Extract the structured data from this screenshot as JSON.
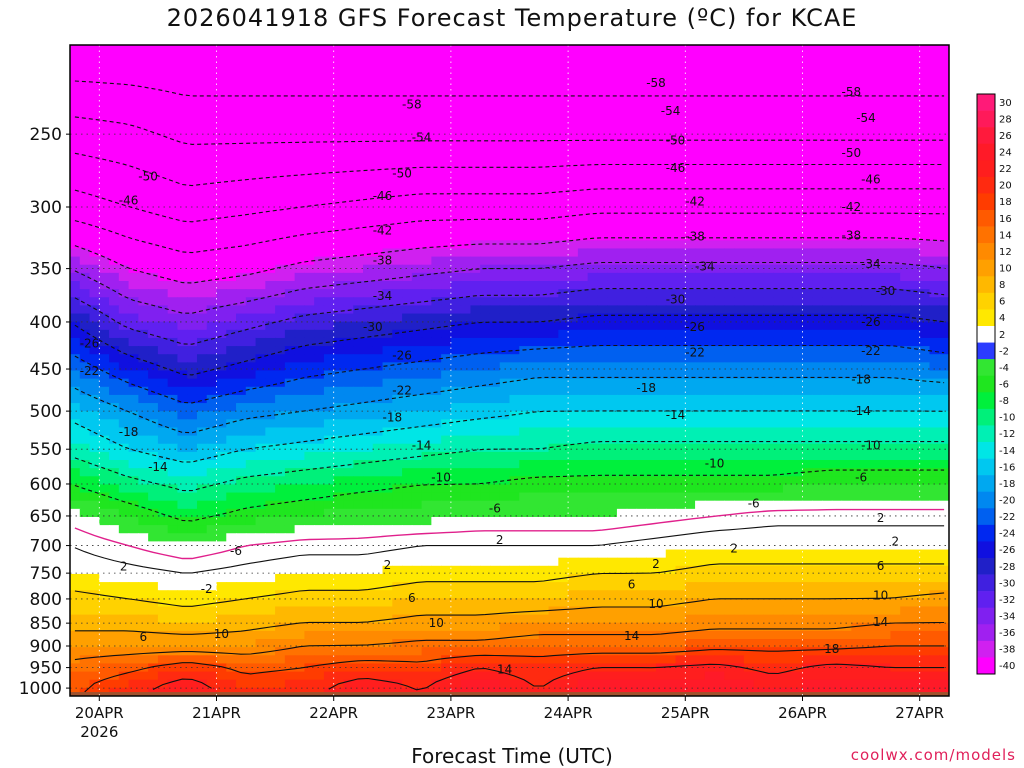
{
  "chart_data": {
    "type": "heatmap",
    "title": "2026041918 GFS Forecast Temperature (ºC) for KCAE",
    "xlabel": "Forecast Time (UTC)",
    "ylabel": "",
    "credit": "coolwx.com/models",
    "x_ticks": [
      "20APR",
      "21APR",
      "22APR",
      "23APR",
      "24APR",
      "25APR",
      "26APR",
      "27APR"
    ],
    "x_tick_hours": [
      6,
      30,
      54,
      78,
      102,
      126,
      150,
      174
    ],
    "x_year": "2026",
    "x_range_hours": [
      0,
      180
    ],
    "y_ticks": [
      250,
      300,
      350,
      400,
      450,
      500,
      550,
      600,
      650,
      700,
      750,
      800,
      850,
      900,
      950,
      1000
    ],
    "y_range_hpa": [
      200,
      1020
    ],
    "y_scale": "log-pressure",
    "colorbar_levels": [
      30,
      28,
      26,
      24,
      22,
      20,
      18,
      16,
      14,
      12,
      10,
      8,
      6,
      4,
      2,
      -2,
      -4,
      -6,
      -8,
      -10,
      -12,
      -14,
      -16,
      -18,
      -20,
      -22,
      -24,
      -26,
      -28,
      -30,
      -32,
      -34,
      -36,
      -38,
      -40
    ],
    "colorbar_colors": [
      "#ff1a78",
      "#ff1a5a",
      "#ff1a3c",
      "#ff1a28",
      "#ff1e1e",
      "#ff2a10",
      "#ff3c00",
      "#ff5a00",
      "#ff7200",
      "#ff8a00",
      "#ffa000",
      "#ffb800",
      "#ffd200",
      "#ffe800",
      "#ffffff",
      "#2b3cff",
      "#32e632",
      "#1fe61f",
      "#00f03c",
      "#00f07a",
      "#00f0b4",
      "#00e6e6",
      "#00c8f0",
      "#00a8f0",
      "#0088f0",
      "#0060f0",
      "#0028f0",
      "#1010e0",
      "#2020c8",
      "#4020e0",
      "#6020f0",
      "#8020f0",
      "#a020f0",
      "#d020f0",
      "#ff00ff"
    ],
    "surface_color": "#a0522d",
    "levels_hpa": [
      200,
      250,
      300,
      350,
      400,
      450,
      500,
      550,
      600,
      650,
      700,
      750,
      800,
      850,
      900,
      950,
      1000
    ],
    "hours": [
      0,
      12,
      24,
      36,
      48,
      60,
      72,
      84,
      96,
      108,
      120,
      132,
      144,
      156,
      168,
      180
    ],
    "temperature_c": [
      [
        -62,
        -62,
        -62,
        -62,
        -62,
        -62,
        -62,
        -62,
        -62,
        -62,
        -62,
        -62,
        -62,
        -62,
        -62,
        -62
      ],
      [
        -52,
        -53,
        -55,
        -55,
        -55,
        -55,
        -55,
        -55,
        -55,
        -55,
        -55,
        -55,
        -55,
        -55,
        -55,
        -55
      ],
      [
        -44,
        -46,
        -48,
        -47,
        -46,
        -45,
        -44,
        -44,
        -44,
        -43,
        -43,
        -43,
        -43,
        -43,
        -43,
        -43
      ],
      [
        -34,
        -38,
        -40,
        -39,
        -37,
        -36,
        -35,
        -34,
        -34,
        -33,
        -33,
        -33,
        -33,
        -33,
        -33,
        -34
      ],
      [
        -26,
        -31,
        -33,
        -31,
        -29,
        -28,
        -27,
        -26,
        -26,
        -25,
        -25,
        -25,
        -25,
        -25,
        -25,
        -26
      ],
      [
        -20,
        -24,
        -27,
        -25,
        -23,
        -22,
        -21,
        -20,
        -19,
        -19,
        -19,
        -19,
        -19,
        -19,
        -19,
        -20
      ],
      [
        -15,
        -18,
        -21,
        -19,
        -18,
        -17,
        -16,
        -15,
        -14,
        -14,
        -14,
        -14,
        -14,
        -14,
        -14,
        -14
      ],
      [
        -11,
        -14,
        -16,
        -14,
        -13,
        -12,
        -11,
        -10,
        -10,
        -9,
        -9,
        -9,
        -9,
        -9,
        -9,
        -9
      ],
      [
        -6,
        -9,
        -11,
        -9,
        -8,
        -7,
        -6,
        -6,
        -5,
        -5,
        -5,
        -5,
        -5,
        -4,
        -4,
        -4
      ],
      [
        -1,
        -4,
        -7,
        -5,
        -4,
        -3,
        -3,
        -2,
        -2,
        -2,
        -1,
        0,
        1,
        1,
        1,
        1
      ],
      [
        2,
        0,
        -2,
        0,
        1,
        1,
        2,
        2,
        2,
        2,
        3,
        4,
        4,
        4,
        4,
        4
      ],
      [
        4,
        3,
        2,
        3,
        4,
        4,
        5,
        5,
        5,
        6,
        6,
        7,
        7,
        7,
        7,
        7
      ],
      [
        7,
        6,
        5,
        6,
        7,
        7,
        8,
        8,
        8,
        9,
        9,
        10,
        10,
        10,
        10,
        11
      ],
      [
        9,
        9,
        8,
        9,
        10,
        10,
        11,
        11,
        12,
        12,
        12,
        13,
        13,
        13,
        14,
        14
      ],
      [
        12,
        12,
        12,
        12,
        14,
        14,
        15,
        15,
        16,
        16,
        16,
        17,
        17,
        17,
        18,
        18
      ],
      [
        15,
        17,
        20,
        17,
        18,
        20,
        19,
        22,
        20,
        22,
        22,
        23,
        21,
        23,
        22,
        22
      ],
      [
        17,
        21,
        24,
        20,
        21,
        24,
        22,
        26,
        22,
        26,
        25,
        26,
        24,
        25,
        25,
        25
      ]
    ],
    "contour_labels": [
      {
        "text": "-58",
        "h": 70,
        "p": 232
      },
      {
        "text": "-58",
        "h": 120,
        "p": 220
      },
      {
        "text": "-58",
        "h": 160,
        "p": 225
      },
      {
        "text": "-54",
        "h": 72,
        "p": 252
      },
      {
        "text": "-54",
        "h": 123,
        "p": 236
      },
      {
        "text": "-54",
        "h": 163,
        "p": 240
      },
      {
        "text": "-50",
        "h": 16,
        "p": 278
      },
      {
        "text": "-50",
        "h": 68,
        "p": 276
      },
      {
        "text": "-50",
        "h": 124,
        "p": 254
      },
      {
        "text": "-50",
        "h": 160,
        "p": 262
      },
      {
        "text": "-46",
        "h": 12,
        "p": 295
      },
      {
        "text": "-46",
        "h": 64,
        "p": 292
      },
      {
        "text": "-46",
        "h": 124,
        "p": 272
      },
      {
        "text": "-46",
        "h": 164,
        "p": 280
      },
      {
        "text": "-42",
        "h": 64,
        "p": 318
      },
      {
        "text": "-42",
        "h": 128,
        "p": 296
      },
      {
        "text": "-42",
        "h": 160,
        "p": 300
      },
      {
        "text": "-38",
        "h": 64,
        "p": 343
      },
      {
        "text": "-38",
        "h": 128,
        "p": 323
      },
      {
        "text": "-38",
        "h": 160,
        "p": 322
      },
      {
        "text": "-34",
        "h": 64,
        "p": 375
      },
      {
        "text": "-34",
        "h": 130,
        "p": 348
      },
      {
        "text": "-34",
        "h": 164,
        "p": 346
      },
      {
        "text": "-30",
        "h": 62,
        "p": 405
      },
      {
        "text": "-30",
        "h": 124,
        "p": 378
      },
      {
        "text": "-30",
        "h": 167,
        "p": 370
      },
      {
        "text": "-26",
        "h": 4,
        "p": 422
      },
      {
        "text": "-26",
        "h": 68,
        "p": 435
      },
      {
        "text": "-26",
        "h": 128,
        "p": 405
      },
      {
        "text": "-26",
        "h": 164,
        "p": 400
      },
      {
        "text": "-22",
        "h": 4,
        "p": 452
      },
      {
        "text": "-22",
        "h": 68,
        "p": 475
      },
      {
        "text": "-22",
        "h": 128,
        "p": 432
      },
      {
        "text": "-22",
        "h": 164,
        "p": 430
      },
      {
        "text": "-18",
        "h": 12,
        "p": 527
      },
      {
        "text": "-18",
        "h": 66,
        "p": 508
      },
      {
        "text": "-18",
        "h": 118,
        "p": 472
      },
      {
        "text": "-18",
        "h": 162,
        "p": 462
      },
      {
        "text": "-14",
        "h": 18,
        "p": 575
      },
      {
        "text": "-14",
        "h": 72,
        "p": 545
      },
      {
        "text": "-14",
        "h": 124,
        "p": 505
      },
      {
        "text": "-14",
        "h": 162,
        "p": 500
      },
      {
        "text": "-10",
        "h": 76,
        "p": 590
      },
      {
        "text": "-10",
        "h": 132,
        "p": 570
      },
      {
        "text": "-10",
        "h": 164,
        "p": 545
      },
      {
        "text": "-6",
        "h": 34,
        "p": 710
      },
      {
        "text": "-6",
        "h": 87,
        "p": 638
      },
      {
        "text": "-6",
        "h": 140,
        "p": 630
      },
      {
        "text": "-6",
        "h": 162,
        "p": 590
      },
      {
        "text": "-2",
        "h": 28,
        "p": 780
      },
      {
        "text": "2",
        "h": 11,
        "p": 738
      },
      {
        "text": "2",
        "h": 65,
        "p": 735
      },
      {
        "text": "2",
        "h": 88,
        "p": 690
      },
      {
        "text": "2",
        "h": 136,
        "p": 705
      },
      {
        "text": "2",
        "h": 120,
        "p": 733
      },
      {
        "text": "2",
        "h": 169,
        "p": 693
      },
      {
        "text": "2",
        "h": 166,
        "p": 653
      },
      {
        "text": "6",
        "h": 15,
        "p": 880
      },
      {
        "text": "6",
        "h": 70,
        "p": 798
      },
      {
        "text": "6",
        "h": 115,
        "p": 772
      },
      {
        "text": "6",
        "h": 166,
        "p": 737
      },
      {
        "text": "10",
        "h": 31,
        "p": 873
      },
      {
        "text": "10",
        "h": 75,
        "p": 850
      },
      {
        "text": "10",
        "h": 120,
        "p": 810
      },
      {
        "text": "10",
        "h": 166,
        "p": 793
      },
      {
        "text": "14",
        "h": 89,
        "p": 955
      },
      {
        "text": "14",
        "h": 115,
        "p": 878
      },
      {
        "text": "14",
        "h": 166,
        "p": 848
      },
      {
        "text": "18",
        "h": 156,
        "p": 907
      }
    ]
  }
}
